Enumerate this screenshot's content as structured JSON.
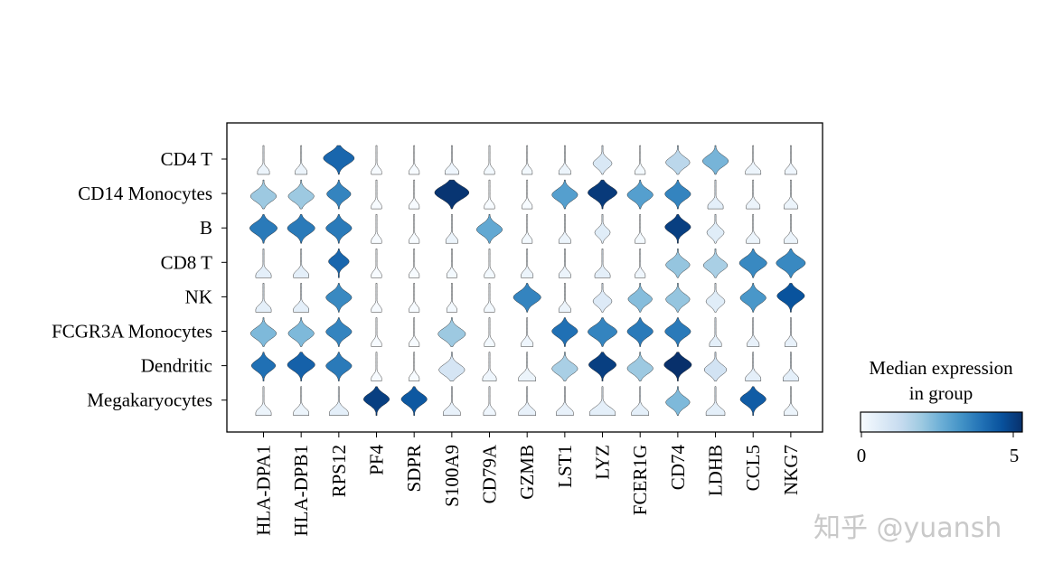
{
  "chart_data": {
    "type": "stacked_violin",
    "genes": [
      "HLA-DPA1",
      "HLA-DPB1",
      "RPS12",
      "PF4",
      "SDPR",
      "S100A9",
      "CD79A",
      "GZMB",
      "LST1",
      "LYZ",
      "FCER1G",
      "CD74",
      "LDHB",
      "CCL5",
      "NKG7"
    ],
    "groups": [
      "CD4 T",
      "CD14 Monocytes",
      "B",
      "CD8 T",
      "NK",
      "FCGR3A Monocytes",
      "Dendritic",
      "Megakaryocytes"
    ],
    "median_expression": [
      [
        0.3,
        0.3,
        4.2,
        0.0,
        0.0,
        0.2,
        0.1,
        0.1,
        0.3,
        0.8,
        0.1,
        1.5,
        2.5,
        0.3,
        0.2
      ],
      [
        2.0,
        2.0,
        3.6,
        0.0,
        0.0,
        5.2,
        0.0,
        0.0,
        3.0,
        5.1,
        3.0,
        3.6,
        0.5,
        0.3,
        0.3
      ],
      [
        3.8,
        3.8,
        3.8,
        0.0,
        0.0,
        0.3,
        2.8,
        0.1,
        0.3,
        0.6,
        0.1,
        5.0,
        0.6,
        0.3,
        0.3
      ],
      [
        0.5,
        0.5,
        4.2,
        0.0,
        0.0,
        0.1,
        0.1,
        0.3,
        0.3,
        0.5,
        0.2,
        2.1,
        1.8,
        3.5,
        3.5
      ],
      [
        0.5,
        0.5,
        3.5,
        0.0,
        0.0,
        0.1,
        0.1,
        3.6,
        0.3,
        0.7,
        2.3,
        2.1,
        0.6,
        3.2,
        4.6
      ],
      [
        2.4,
        2.4,
        3.6,
        0.0,
        0.0,
        2.0,
        0.1,
        0.2,
        4.0,
        3.6,
        3.8,
        3.8,
        0.5,
        0.4,
        0.4
      ],
      [
        4.0,
        4.3,
        3.8,
        0.0,
        0.0,
        0.9,
        0.2,
        0.3,
        1.8,
        5.0,
        2.0,
        5.3,
        1.0,
        0.5,
        0.5
      ],
      [
        0.3,
        0.3,
        0.5,
        5.0,
        4.5,
        0.4,
        0.2,
        0.4,
        0.4,
        0.5,
        0.5,
        2.4,
        0.5,
        4.4,
        0.3
      ]
    ],
    "widths": [
      [
        0.35,
        0.35,
        0.9,
        0.3,
        0.3,
        0.4,
        0.3,
        0.3,
        0.35,
        0.55,
        0.3,
        0.7,
        0.75,
        0.45,
        0.35
      ],
      [
        0.75,
        0.75,
        0.7,
        0.3,
        0.3,
        1.0,
        0.3,
        0.3,
        0.75,
        0.85,
        0.75,
        0.75,
        0.45,
        0.4,
        0.4
      ],
      [
        0.8,
        0.8,
        0.75,
        0.3,
        0.3,
        0.35,
        0.75,
        0.3,
        0.35,
        0.45,
        0.3,
        0.75,
        0.5,
        0.4,
        0.4
      ],
      [
        0.45,
        0.45,
        0.6,
        0.3,
        0.3,
        0.3,
        0.3,
        0.35,
        0.35,
        0.45,
        0.3,
        0.7,
        0.7,
        0.8,
        0.85
      ],
      [
        0.45,
        0.45,
        0.75,
        0.3,
        0.3,
        0.3,
        0.3,
        0.8,
        0.35,
        0.55,
        0.7,
        0.7,
        0.55,
        0.75,
        0.8
      ],
      [
        0.75,
        0.75,
        0.75,
        0.3,
        0.3,
        0.8,
        0.3,
        0.35,
        0.75,
        0.85,
        0.75,
        0.75,
        0.35,
        0.35,
        0.35
      ],
      [
        0.7,
        0.8,
        0.75,
        0.3,
        0.3,
        0.75,
        0.4,
        0.5,
        0.75,
        0.8,
        0.75,
        0.8,
        0.65,
        0.45,
        0.45
      ],
      [
        0.45,
        0.45,
        0.55,
        0.75,
        0.75,
        0.5,
        0.35,
        0.5,
        0.5,
        0.75,
        0.5,
        0.7,
        0.55,
        0.75,
        0.4
      ]
    ],
    "colorbar": {
      "title_line1": "Median expression",
      "title_line2": "in group",
      "min_label": "0",
      "max_label": "5",
      "vmin": 0,
      "vmax": 5.3
    },
    "colormap": [
      "#f7fbff",
      "#deebf7",
      "#c6dbef",
      "#9ecae1",
      "#6baed6",
      "#4292c6",
      "#2171b5",
      "#08519c",
      "#08306b"
    ]
  },
  "watermark": "知乎 @yuansh"
}
